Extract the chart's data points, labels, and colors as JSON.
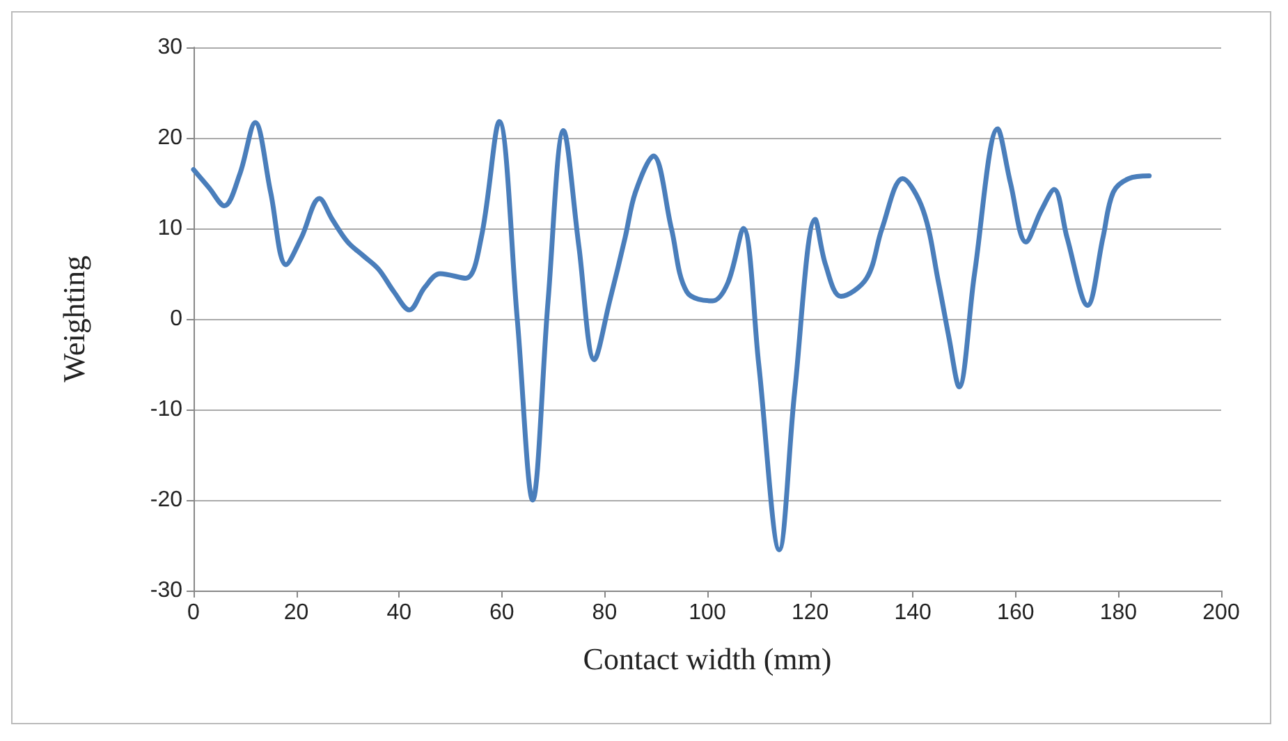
{
  "chart_data": {
    "type": "line",
    "xlabel": "Contact width (mm)",
    "ylabel": "Weighting",
    "xlim": [
      0,
      200
    ],
    "xticks": [
      0,
      20,
      40,
      60,
      80,
      100,
      120,
      140,
      160,
      180,
      200
    ],
    "ylim": [
      -30,
      30
    ],
    "yticks": [
      -30,
      -20,
      -10,
      0,
      10,
      20,
      30
    ],
    "grid": "y",
    "marker": "none",
    "line_style": "solid",
    "series": [
      {
        "color": "#4a7ebb",
        "x": [
          0,
          3,
          6,
          9,
          12,
          15,
          18,
          21,
          24.5,
          27,
          30,
          33,
          36,
          39,
          42,
          45,
          48,
          53,
          56,
          59.5,
          63,
          66,
          69,
          72,
          75,
          78,
          81,
          84,
          86,
          89.5,
          93,
          96,
          101,
          104,
          107,
          110,
          114,
          117,
          121,
          123,
          126,
          131,
          134,
          138,
          142,
          145,
          147,
          149,
          152,
          156.5,
          159,
          162,
          165,
          167.5,
          170,
          174,
          177,
          179,
          182,
          186
        ],
        "values": [
          16.5,
          14.5,
          12.5,
          16,
          21.7,
          14,
          6,
          9,
          13.3,
          11,
          8.5,
          7,
          5.5,
          3,
          1,
          3.5,
          5,
          4.5,
          9,
          21.8,
          0,
          -20,
          2,
          20.8,
          8,
          -4.5,
          2,
          9,
          14,
          18,
          10,
          3,
          2,
          4,
          10,
          -5,
          -25.5,
          -8,
          11,
          6,
          2.5,
          4.5,
          10,
          15.5,
          12,
          4,
          -2,
          -7.5,
          5,
          21,
          15,
          8.5,
          12,
          14.3,
          9,
          1.5,
          9,
          14,
          15.5,
          15.8
        ]
      }
    ]
  }
}
